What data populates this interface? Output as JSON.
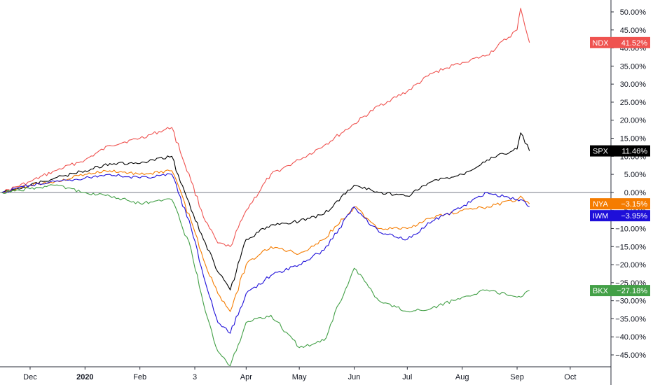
{
  "chart_data": {
    "type": "line",
    "title": "",
    "xlabel": "",
    "ylabel": "",
    "y_unit": "%",
    "ylim": [
      -50,
      52
    ],
    "grid": false,
    "legend": "right-axis-badges",
    "zero_line": true,
    "x_ticks": [
      {
        "label": "Dec",
        "x": "2019-12-01",
        "bold": false
      },
      {
        "label": "2020",
        "x": "2020-01-01",
        "bold": true
      },
      {
        "label": "Feb",
        "x": "2020-02-01",
        "bold": false
      },
      {
        "label": "3",
        "x": "2020-03-03",
        "bold": false
      },
      {
        "label": "Apr",
        "x": "2020-04-01",
        "bold": false
      },
      {
        "label": "May",
        "x": "2020-05-01",
        "bold": false
      },
      {
        "label": "Jun",
        "x": "2020-06-01",
        "bold": false
      },
      {
        "label": "Jul",
        "x": "2020-07-01",
        "bold": false
      },
      {
        "label": "Aug",
        "x": "2020-08-01",
        "bold": false
      },
      {
        "label": "Sep",
        "x": "2020-09-01",
        "bold": false
      },
      {
        "label": "Oct",
        "x": "2020-10-01",
        "bold": false
      }
    ],
    "y_ticks": [
      {
        "value": 50,
        "label": "50.00%"
      },
      {
        "value": 45,
        "label": "45.00%"
      },
      {
        "value": 40,
        "label": "40.00%"
      },
      {
        "value": 35,
        "label": "35.00%"
      },
      {
        "value": 30,
        "label": "30.00%"
      },
      {
        "value": 25,
        "label": "25.00%"
      },
      {
        "value": 20,
        "label": "20.00%"
      },
      {
        "value": 15,
        "label": "15.00%"
      },
      {
        "value": 10,
        "label": "10.00%"
      },
      {
        "value": 5,
        "label": "5.00%"
      },
      {
        "value": 0,
        "label": "0.00%"
      },
      {
        "value": -5,
        "label": "−5.00%"
      },
      {
        "value": -10,
        "label": "−10.00%"
      },
      {
        "value": -15,
        "label": "−15.00%"
      },
      {
        "value": -20,
        "label": "−20.00%"
      },
      {
        "value": -25,
        "label": "−25.00%"
      },
      {
        "value": -30,
        "label": "−30.00%"
      },
      {
        "value": -35,
        "label": "−35.00%"
      },
      {
        "value": -40,
        "label": "−40.00%"
      },
      {
        "value": -45,
        "label": "−45.00%"
      }
    ],
    "series": [
      {
        "name": "NDX",
        "color": "#ef5350",
        "last_label": "41.52%",
        "x": [
          "2019-11-15",
          "2019-12-01",
          "2019-12-15",
          "2020-01-01",
          "2020-01-15",
          "2020-02-01",
          "2020-02-19",
          "2020-03-01",
          "2020-03-09",
          "2020-03-16",
          "2020-03-23",
          "2020-04-01",
          "2020-04-15",
          "2020-05-01",
          "2020-05-15",
          "2020-06-01",
          "2020-06-15",
          "2020-07-01",
          "2020-07-15",
          "2020-08-01",
          "2020-08-15",
          "2020-09-01",
          "2020-09-03",
          "2020-09-08"
        ],
        "values": [
          0,
          3,
          6,
          9,
          13,
          15,
          18,
          3,
          -8,
          -14,
          -15,
          -5,
          5,
          9,
          13,
          19,
          24,
          28,
          33,
          36,
          38,
          45,
          51,
          41.5
        ]
      },
      {
        "name": "SPX",
        "color": "#000000",
        "last_label": "11.46%",
        "x": [
          "2019-11-15",
          "2019-12-01",
          "2019-12-15",
          "2020-01-01",
          "2020-01-15",
          "2020-02-01",
          "2020-02-19",
          "2020-03-01",
          "2020-03-09",
          "2020-03-16",
          "2020-03-23",
          "2020-04-01",
          "2020-04-15",
          "2020-05-01",
          "2020-05-15",
          "2020-06-01",
          "2020-06-15",
          "2020-07-01",
          "2020-07-15",
          "2020-08-01",
          "2020-08-15",
          "2020-09-01",
          "2020-09-03",
          "2020-09-08"
        ],
        "values": [
          0,
          2,
          4,
          6,
          8,
          8,
          10,
          -5,
          -14,
          -22,
          -27,
          -13,
          -9,
          -8,
          -6,
          2,
          0,
          -1,
          3,
          5,
          9,
          12,
          16.5,
          11.5
        ]
      },
      {
        "name": "NYA",
        "color": "#f57c00",
        "last_label": "−3.15%",
        "x": [
          "2019-11-15",
          "2019-12-01",
          "2019-12-15",
          "2020-01-01",
          "2020-01-15",
          "2020-02-01",
          "2020-02-19",
          "2020-03-01",
          "2020-03-09",
          "2020-03-16",
          "2020-03-23",
          "2020-04-01",
          "2020-04-15",
          "2020-05-01",
          "2020-05-15",
          "2020-06-01",
          "2020-06-15",
          "2020-07-01",
          "2020-07-15",
          "2020-08-01",
          "2020-08-15",
          "2020-09-01",
          "2020-09-03",
          "2020-09-08"
        ],
        "values": [
          0,
          2,
          3,
          5,
          6,
          5,
          6,
          -8,
          -20,
          -28,
          -33,
          -20,
          -15,
          -17,
          -13,
          -4,
          -10,
          -10,
          -7,
          -5,
          -4,
          -2,
          -1,
          -3.15
        ]
      },
      {
        "name": "IWM",
        "color": "#1e0fd9",
        "last_label": "−3.95%",
        "x": [
          "2019-11-15",
          "2019-12-01",
          "2019-12-15",
          "2020-01-01",
          "2020-01-15",
          "2020-02-01",
          "2020-02-19",
          "2020-03-01",
          "2020-03-09",
          "2020-03-16",
          "2020-03-23",
          "2020-04-01",
          "2020-04-15",
          "2020-05-01",
          "2020-05-15",
          "2020-06-01",
          "2020-06-15",
          "2020-07-01",
          "2020-07-15",
          "2020-08-01",
          "2020-08-15",
          "2020-09-01",
          "2020-09-03",
          "2020-09-08"
        ],
        "values": [
          0,
          2,
          3,
          4,
          5,
          4,
          5,
          -10,
          -25,
          -36,
          -39,
          -28,
          -23,
          -20,
          -16,
          -4,
          -11,
          -13,
          -8,
          -4,
          0,
          -2,
          -2,
          -3.95
        ]
      },
      {
        "name": "BKX",
        "color": "#43a047",
        "last_label": "−27.18%",
        "x": [
          "2019-11-15",
          "2019-12-01",
          "2019-12-15",
          "2020-01-01",
          "2020-01-15",
          "2020-02-01",
          "2020-02-19",
          "2020-03-01",
          "2020-03-09",
          "2020-03-16",
          "2020-03-23",
          "2020-04-01",
          "2020-04-15",
          "2020-05-01",
          "2020-05-15",
          "2020-06-01",
          "2020-06-15",
          "2020-07-01",
          "2020-07-15",
          "2020-08-01",
          "2020-08-15",
          "2020-09-01",
          "2020-09-03",
          "2020-09-08"
        ],
        "values": [
          0,
          1,
          2,
          0,
          -1,
          -3,
          -2,
          -16,
          -33,
          -44,
          -48,
          -36,
          -34,
          -43,
          -41,
          -21,
          -30,
          -33,
          -32,
          -29,
          -27,
          -29,
          -29,
          -27.18
        ]
      }
    ]
  }
}
